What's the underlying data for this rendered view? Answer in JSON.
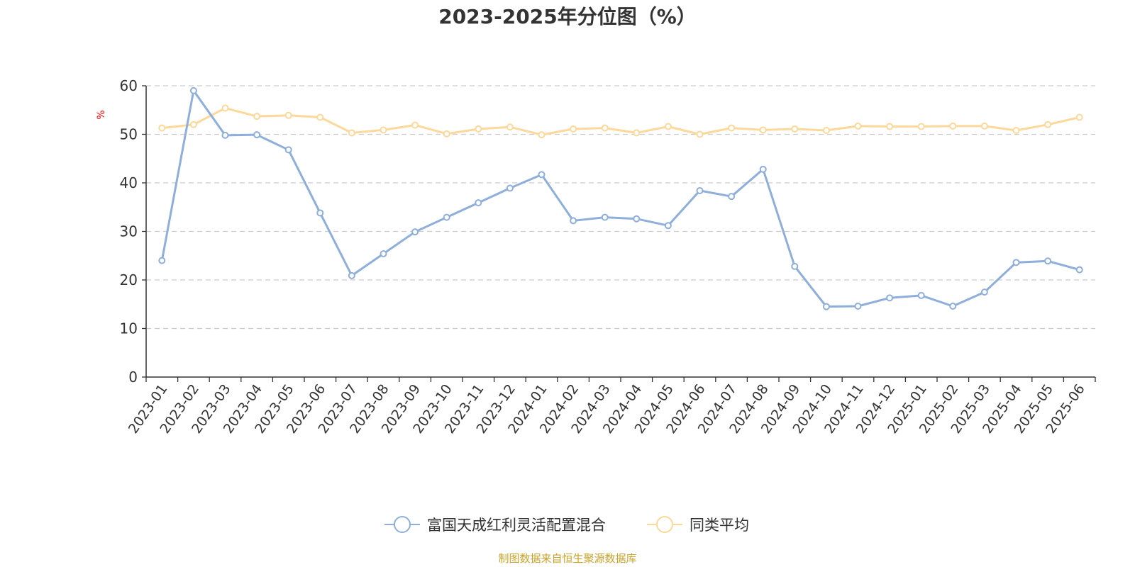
{
  "chart_data": {
    "type": "line",
    "title": "2023-2025年分位图（%）",
    "ylabel": "%",
    "xlabel": "",
    "ylim": [
      0,
      60
    ],
    "yticks": [
      0,
      10,
      20,
      30,
      40,
      50,
      60
    ],
    "grid": true,
    "legend_position": "bottom",
    "categories": [
      "2023-01",
      "2023-02",
      "2023-03",
      "2023-04",
      "2023-05",
      "2023-06",
      "2023-07",
      "2023-08",
      "2023-09",
      "2023-10",
      "2023-11",
      "2023-12",
      "2024-01",
      "2024-02",
      "2024-03",
      "2024-04",
      "2024-05",
      "2024-06",
      "2024-07",
      "2024-08",
      "2024-09",
      "2024-10",
      "2024-11",
      "2024-12",
      "2025-01",
      "2025-02",
      "2025-03",
      "2025-04",
      "2025-05",
      "2025-06"
    ],
    "series": [
      {
        "name": "富国天成红利灵活配置混合",
        "color": "#8eaedb",
        "values": [
          24.0,
          59.0,
          49.8,
          49.9,
          46.8,
          33.8,
          20.9,
          25.4,
          29.9,
          32.9,
          35.9,
          38.9,
          41.7,
          32.2,
          32.9,
          32.6,
          31.2,
          38.4,
          37.2,
          42.8,
          22.8,
          14.5,
          14.6,
          16.3,
          16.8,
          14.6,
          17.5,
          23.6,
          23.9,
          22.1
        ]
      },
      {
        "name": "同类平均",
        "color": "#fcd89a",
        "values": [
          51.3,
          52.0,
          55.4,
          53.7,
          53.9,
          53.5,
          50.3,
          50.9,
          51.9,
          50.1,
          51.1,
          51.5,
          49.9,
          51.1,
          51.3,
          50.3,
          51.6,
          50.0,
          51.3,
          50.9,
          51.1,
          50.8,
          51.7,
          51.6,
          51.6,
          51.7,
          51.7,
          50.8,
          52.0,
          53.5
        ]
      }
    ],
    "source_note": "制图数据来自恒生聚源数据库",
    "colors": {
      "unit_label": "#ff0000",
      "source_note": "#c9a227",
      "grid": "#cccccc",
      "axis": "#333333"
    }
  }
}
